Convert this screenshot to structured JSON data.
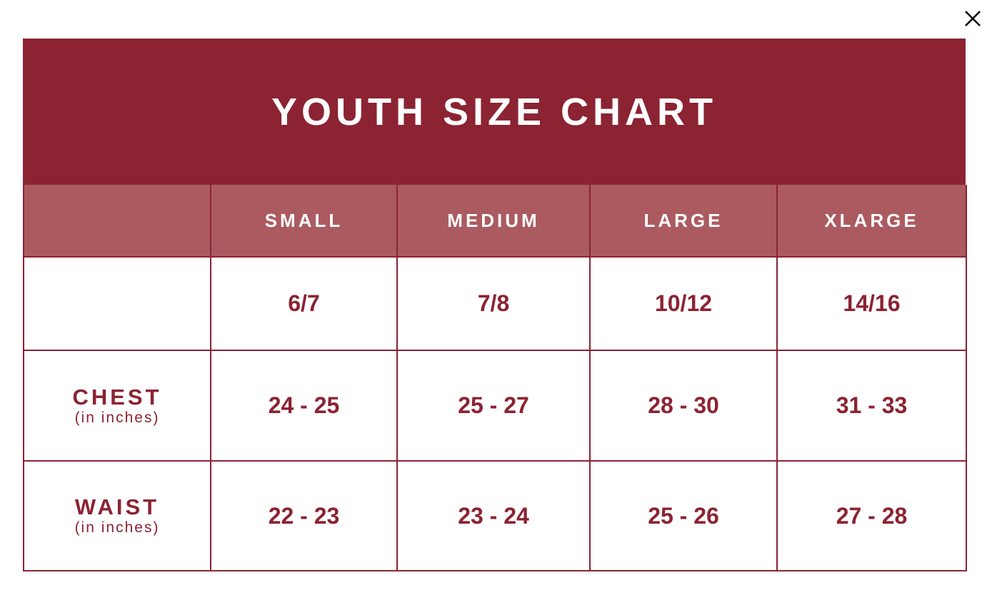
{
  "dialog": {
    "close_icon": "close-icon"
  },
  "size_chart": {
    "title": "YOUTH SIZE CHART",
    "columns": [
      "",
      "SMALL",
      "MEDIUM",
      "LARGE",
      "XLARGE"
    ],
    "youth_sizes": [
      "6/7",
      "7/8",
      "10/12",
      "14/16"
    ],
    "rows": [
      {
        "label": "CHEST",
        "sublabel": "(in inches)",
        "values": [
          "24 - 25",
          "25 - 27",
          "28 - 30",
          "31 - 33"
        ]
      },
      {
        "label": "WAIST",
        "sublabel": "(in inches)",
        "values": [
          "22 - 23",
          "23 - 24",
          "25 - 26",
          "27 - 28"
        ]
      }
    ]
  },
  "colors": {
    "title_bg": "#8b2332",
    "header_bg": "#ab5b60",
    "text_accent": "#8b2332",
    "border": "#8b2332"
  }
}
